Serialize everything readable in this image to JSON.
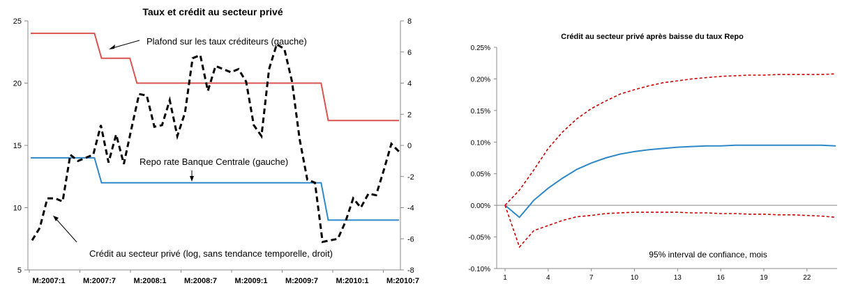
{
  "chart_data": [
    {
      "type": "line",
      "title": "Taux et crédit au secteur privé",
      "xlabel": "",
      "ylabel": "",
      "x_tick_labels": [
        "M:2007:1",
        "M:2007:7",
        "M:2008:1",
        "M:2008:7",
        "M:2009:1",
        "M:2009:7",
        "M:2010:1",
        "M:2010:7"
      ],
      "y_left": {
        "ticks": [
          5,
          10,
          15,
          20,
          25
        ],
        "range": [
          5,
          25
        ]
      },
      "y_right": {
        "ticks": [
          -8,
          -6,
          -4,
          -2,
          0,
          2,
          4,
          6,
          8
        ],
        "range": [
          -8,
          8
        ]
      },
      "colors": {
        "plafond": "#d9534f",
        "repo": "#2e88c8",
        "credit": "#000000"
      },
      "series": [
        {
          "axis": "left",
          "style": "solid",
          "values": [
            24,
            24,
            24,
            24,
            24,
            24,
            24,
            24,
            24,
            24,
            22,
            22,
            22,
            22,
            22,
            20,
            20,
            20,
            20,
            20,
            20,
            20,
            20,
            20,
            20,
            20,
            20,
            20,
            20,
            20,
            20,
            20,
            20,
            20,
            20,
            20,
            20,
            20,
            20,
            20,
            20,
            20,
            17,
            17,
            17,
            17,
            17,
            17,
            17,
            17,
            17,
            17,
            17
          ]
        },
        {
          "axis": "left",
          "style": "solid",
          "values": [
            14,
            14,
            14,
            14,
            14,
            14,
            14,
            14,
            14,
            14,
            12,
            12,
            12,
            12,
            12,
            12,
            12,
            12,
            12,
            12,
            12,
            12,
            12,
            12,
            12,
            12,
            12,
            12,
            12,
            12,
            12,
            12,
            12,
            12,
            12,
            12,
            12,
            12,
            12,
            12,
            12,
            12,
            9,
            9,
            9,
            9,
            9,
            9,
            9,
            9,
            9,
            9,
            9
          ]
        },
        {
          "axis": "right",
          "style": "dashed",
          "values": [
            -6.1,
            -5.3,
            -3.4,
            -3.4,
            -3.6,
            -0.6,
            -1.0,
            -0.8,
            -0.6,
            1.3,
            -1.1,
            0.7,
            -1.2,
            1.1,
            3.3,
            3.2,
            1.2,
            1.3,
            2.9,
            0.6,
            2.1,
            5.6,
            5.8,
            3.5,
            5.1,
            4.9,
            4.7,
            4.9,
            4.1,
            1.3,
            0.6,
            4.9,
            6.5,
            6.2,
            4.1,
            0.4,
            -2.2,
            -2.4,
            -6.2,
            -6.1,
            -6.0,
            -4.9,
            -3.4,
            -4.0,
            -3.1,
            -3.2,
            -1.6,
            0.1,
            -0.4
          ]
        }
      ],
      "annotations": [
        "Plafond sur les taux créditeurs (gauche)",
        "Repo rate Banque Centrale (gauche)",
        "Crédit au secteur privé (log, sans tendance temporelle, droit)"
      ]
    },
    {
      "type": "line",
      "title": "Crédit au secteur privé après baisse du taux Repo",
      "xlabel": "95%  interval de confiance, mois",
      "ylabel": "",
      "x": [
        1,
        2,
        3,
        4,
        5,
        6,
        7,
        8,
        9,
        10,
        11,
        12,
        13,
        14,
        15,
        16,
        17,
        18,
        19,
        20,
        21,
        22,
        23,
        24
      ],
      "x_tick_labels": [
        "1",
        "4",
        "7",
        "10",
        "13",
        "16",
        "19",
        "22"
      ],
      "y_tick_labels": [
        "-0.10%",
        "-0.05%",
        "0.00%",
        "0.05%",
        "0.10%",
        "0.15%",
        "0.20%",
        "0.25%"
      ],
      "ylim": [
        -0.1,
        0.25
      ],
      "colors": {
        "central": "#2e88c8",
        "bands": "#cc0000"
      },
      "series": [
        {
          "style": "solid",
          "values": [
            0.0,
            -0.019,
            0.008,
            0.027,
            0.043,
            0.057,
            0.067,
            0.075,
            0.081,
            0.085,
            0.088,
            0.09,
            0.092,
            0.093,
            0.094,
            0.094,
            0.095,
            0.095,
            0.095,
            0.095,
            0.095,
            0.095,
            0.095,
            0.094
          ]
        },
        {
          "style": "dashed",
          "values": [
            0.0,
            0.024,
            0.056,
            0.09,
            0.116,
            0.137,
            0.153,
            0.165,
            0.176,
            0.183,
            0.189,
            0.194,
            0.197,
            0.2,
            0.202,
            0.204,
            0.205,
            0.206,
            0.206,
            0.207,
            0.207,
            0.207,
            0.207,
            0.208
          ]
        },
        {
          "style": "dashed",
          "values": [
            0.0,
            -0.066,
            -0.04,
            -0.032,
            -0.024,
            -0.018,
            -0.016,
            -0.013,
            -0.012,
            -0.011,
            -0.011,
            -0.011,
            -0.011,
            -0.012,
            -0.012,
            -0.013,
            -0.013,
            -0.014,
            -0.014,
            -0.015,
            -0.015,
            -0.016,
            -0.017,
            -0.019
          ]
        }
      ]
    }
  ]
}
